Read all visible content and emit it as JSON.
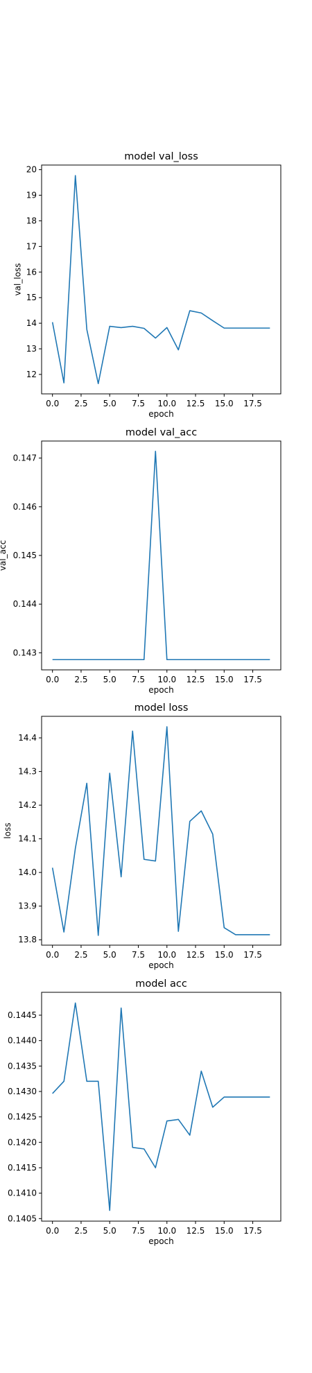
{
  "line_color": "#1f77b4",
  "chart_data": [
    {
      "type": "line",
      "title": "model val_loss",
      "xlabel": "epoch",
      "ylabel": "val_loss",
      "x": [
        0,
        1,
        2,
        3,
        4,
        5,
        6,
        7,
        8,
        9,
        10,
        11,
        12,
        13,
        14,
        15,
        16,
        17,
        18,
        19
      ],
      "series": [
        {
          "values": [
            14.04,
            11.67,
            19.77,
            13.76,
            11.64,
            13.88,
            13.83,
            13.88,
            13.8,
            13.42,
            13.83,
            12.96,
            14.49,
            14.4,
            14.1,
            13.81,
            13.81,
            13.81,
            13.81,
            13.81
          ]
        }
      ],
      "xlim": [
        -0.95,
        19.95
      ],
      "ylim": [
        11.24,
        20.18
      ],
      "xticks": [
        0,
        2.5,
        5,
        7.5,
        10,
        12.5,
        15,
        17.5
      ],
      "xtick_labels": [
        "0.0",
        "2.5",
        "5.0",
        "7.5",
        "10.0",
        "12.5",
        "15.0",
        "17.5"
      ],
      "yticks": [
        12,
        13,
        14,
        15,
        16,
        17,
        18,
        19,
        20
      ],
      "ytick_labels": [
        "12",
        "13",
        "14",
        "15",
        "16",
        "17",
        "18",
        "19",
        "20"
      ],
      "grid": false,
      "legend": false
    },
    {
      "type": "line",
      "title": "model val_acc",
      "xlabel": "epoch",
      "ylabel": "val_acc",
      "x": [
        0,
        1,
        2,
        3,
        4,
        5,
        6,
        7,
        8,
        9,
        10,
        11,
        12,
        13,
        14,
        15,
        16,
        17,
        18,
        19
      ],
      "series": [
        {
          "values": [
            0.14286,
            0.14286,
            0.14286,
            0.14286,
            0.14286,
            0.14286,
            0.14286,
            0.14286,
            0.14286,
            0.14714,
            0.14286,
            0.14286,
            0.14286,
            0.14286,
            0.14286,
            0.14286,
            0.14286,
            0.14286,
            0.14286,
            0.14286
          ]
        }
      ],
      "xlim": [
        -0.95,
        19.95
      ],
      "ylim": [
        0.14265,
        0.14735
      ],
      "xticks": [
        0,
        2.5,
        5,
        7.5,
        10,
        12.5,
        15,
        17.5
      ],
      "xtick_labels": [
        "0.0",
        "2.5",
        "5.0",
        "7.5",
        "10.0",
        "12.5",
        "15.0",
        "17.5"
      ],
      "yticks": [
        0.143,
        0.144,
        0.145,
        0.146,
        0.147
      ],
      "ytick_labels": [
        "0.143",
        "0.144",
        "0.145",
        "0.146",
        "0.147"
      ],
      "grid": false,
      "legend": false
    },
    {
      "type": "line",
      "title": "model loss",
      "xlabel": "epoch",
      "ylabel": "loss",
      "x": [
        0,
        1,
        2,
        3,
        4,
        5,
        6,
        7,
        8,
        9,
        10,
        11,
        12,
        13,
        14,
        15,
        16,
        17,
        18,
        19
      ],
      "series": [
        {
          "values": [
            14.014,
            13.823,
            14.072,
            14.265,
            13.813,
            14.295,
            13.987,
            14.42,
            14.039,
            14.034,
            14.433,
            13.825,
            14.152,
            14.183,
            14.114,
            13.836,
            13.815,
            13.815,
            13.815,
            13.815
          ]
        }
      ],
      "xlim": [
        -0.95,
        19.95
      ],
      "ylim": [
        13.784,
        14.464
      ],
      "xticks": [
        0,
        2.5,
        5,
        7.5,
        10,
        12.5,
        15,
        17.5
      ],
      "xtick_labels": [
        "0.0",
        "2.5",
        "5.0",
        "7.5",
        "10.0",
        "12.5",
        "15.0",
        "17.5"
      ],
      "yticks": [
        13.8,
        13.9,
        14.0,
        14.1,
        14.2,
        14.3,
        14.4
      ],
      "ytick_labels": [
        "13.8",
        "13.9",
        "14.0",
        "14.1",
        "14.2",
        "14.3",
        "14.4"
      ],
      "grid": false,
      "legend": false
    },
    {
      "type": "line",
      "title": "model acc",
      "xlabel": "epoch",
      "ylabel": "",
      "x": [
        0,
        1,
        2,
        3,
        4,
        5,
        6,
        7,
        8,
        9,
        10,
        11,
        12,
        13,
        14,
        15,
        16,
        17,
        18,
        19
      ],
      "series": [
        {
          "values": [
            0.14296,
            0.1432,
            0.14474,
            0.1432,
            0.1432,
            0.14066,
            0.14464,
            0.1419,
            0.14187,
            0.1415,
            0.14242,
            0.14245,
            0.14214,
            0.1434,
            0.14269,
            0.14289,
            0.14289,
            0.14289,
            0.14289,
            0.14289
          ]
        }
      ],
      "xlim": [
        -0.95,
        19.95
      ],
      "ylim": [
        0.14045,
        0.14495
      ],
      "xticks": [
        0,
        2.5,
        5,
        7.5,
        10,
        12.5,
        15,
        17.5
      ],
      "xtick_labels": [
        "0.0",
        "2.5",
        "5.0",
        "7.5",
        "10.0",
        "12.5",
        "15.0",
        "17.5"
      ],
      "yticks": [
        0.1405,
        0.141,
        0.1415,
        0.142,
        0.1425,
        0.143,
        0.1435,
        0.144,
        0.1445
      ],
      "ytick_labels": [
        "0.1405",
        "0.1410",
        "0.1415",
        "0.1420",
        "0.1425",
        "0.1430",
        "0.1435",
        "0.1440",
        "0.1445"
      ],
      "grid": false,
      "legend": false
    }
  ]
}
